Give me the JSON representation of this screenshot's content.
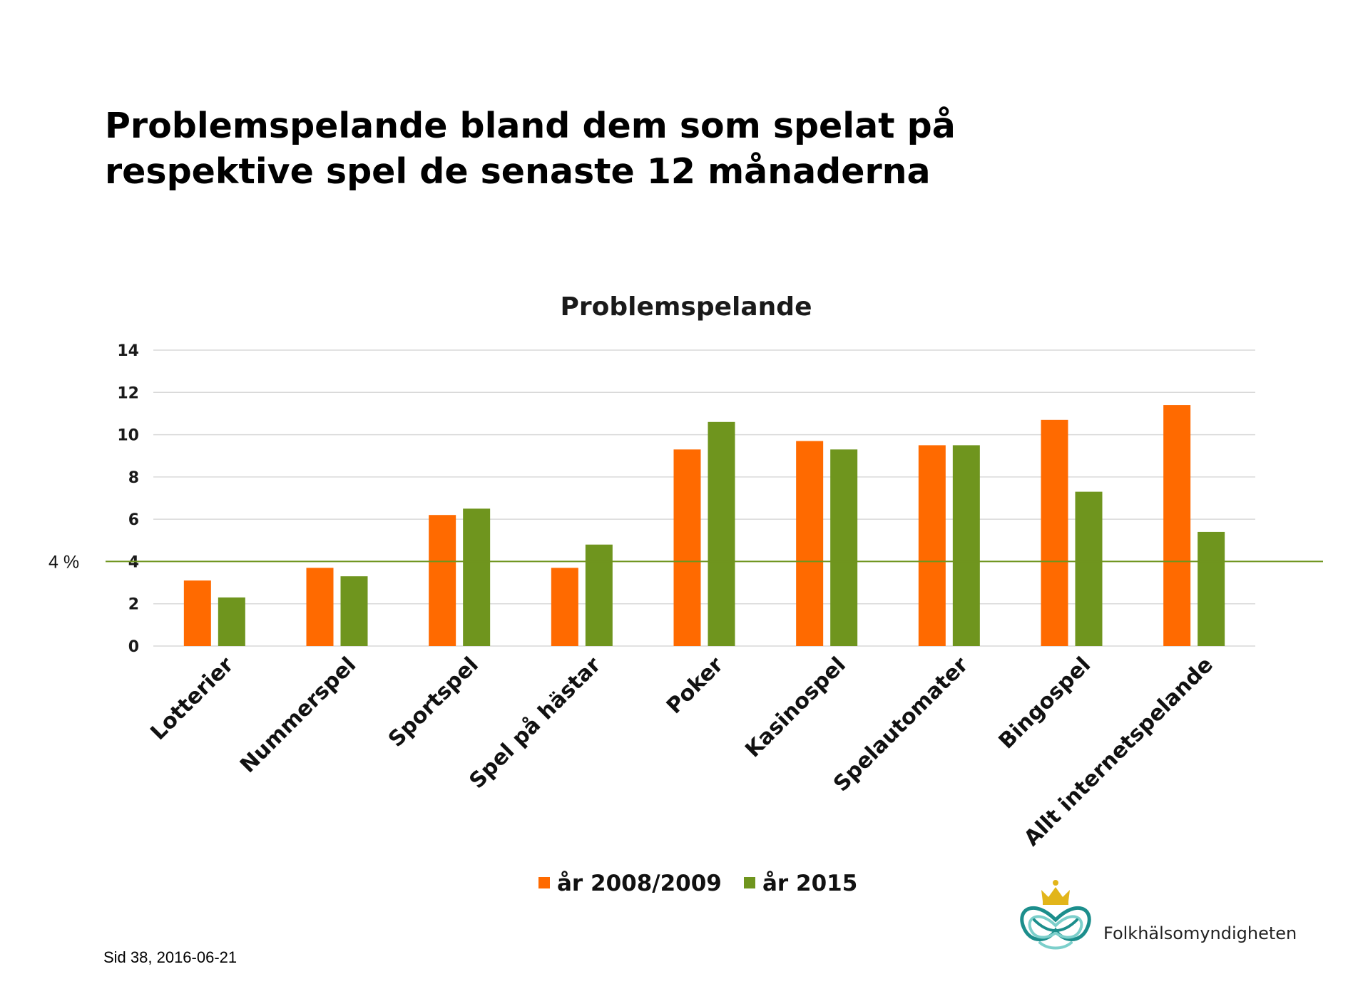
{
  "slide": {
    "title_line1": "Problemspelande bland dem som spelat på",
    "title_line2": "respektive spel de senaste 12 månaderna",
    "footer": "Sid 38, 2016-06-21",
    "reference_label": "4 %",
    "logo_text": "Folkhälsomyndigheten"
  },
  "chart_data": {
    "type": "bar",
    "title": "Problemspelande",
    "categories": [
      "Lotterier",
      "Nummerspel",
      "Sportspel",
      "Spel på hästar",
      "Poker",
      "Kasinospel",
      "Spelautomater",
      "Bingospel",
      "Allt internetspelande"
    ],
    "series": [
      {
        "name": "år 2008/2009",
        "color": "#ff6a00",
        "values": [
          3.1,
          3.7,
          6.2,
          3.7,
          9.3,
          9.7,
          9.5,
          10.7,
          11.4
        ]
      },
      {
        "name": "år 2015",
        "color": "#6f951e",
        "values": [
          2.3,
          3.3,
          6.5,
          4.8,
          10.6,
          9.3,
          9.5,
          7.3,
          5.4
        ]
      }
    ],
    "yticks": [
      0,
      2,
      4,
      6,
      8,
      10,
      12,
      14
    ],
    "ylim": [
      0,
      14
    ],
    "grid": true,
    "legend": "bottom",
    "reference_line": {
      "value": 4,
      "color": "#6f951e"
    }
  }
}
